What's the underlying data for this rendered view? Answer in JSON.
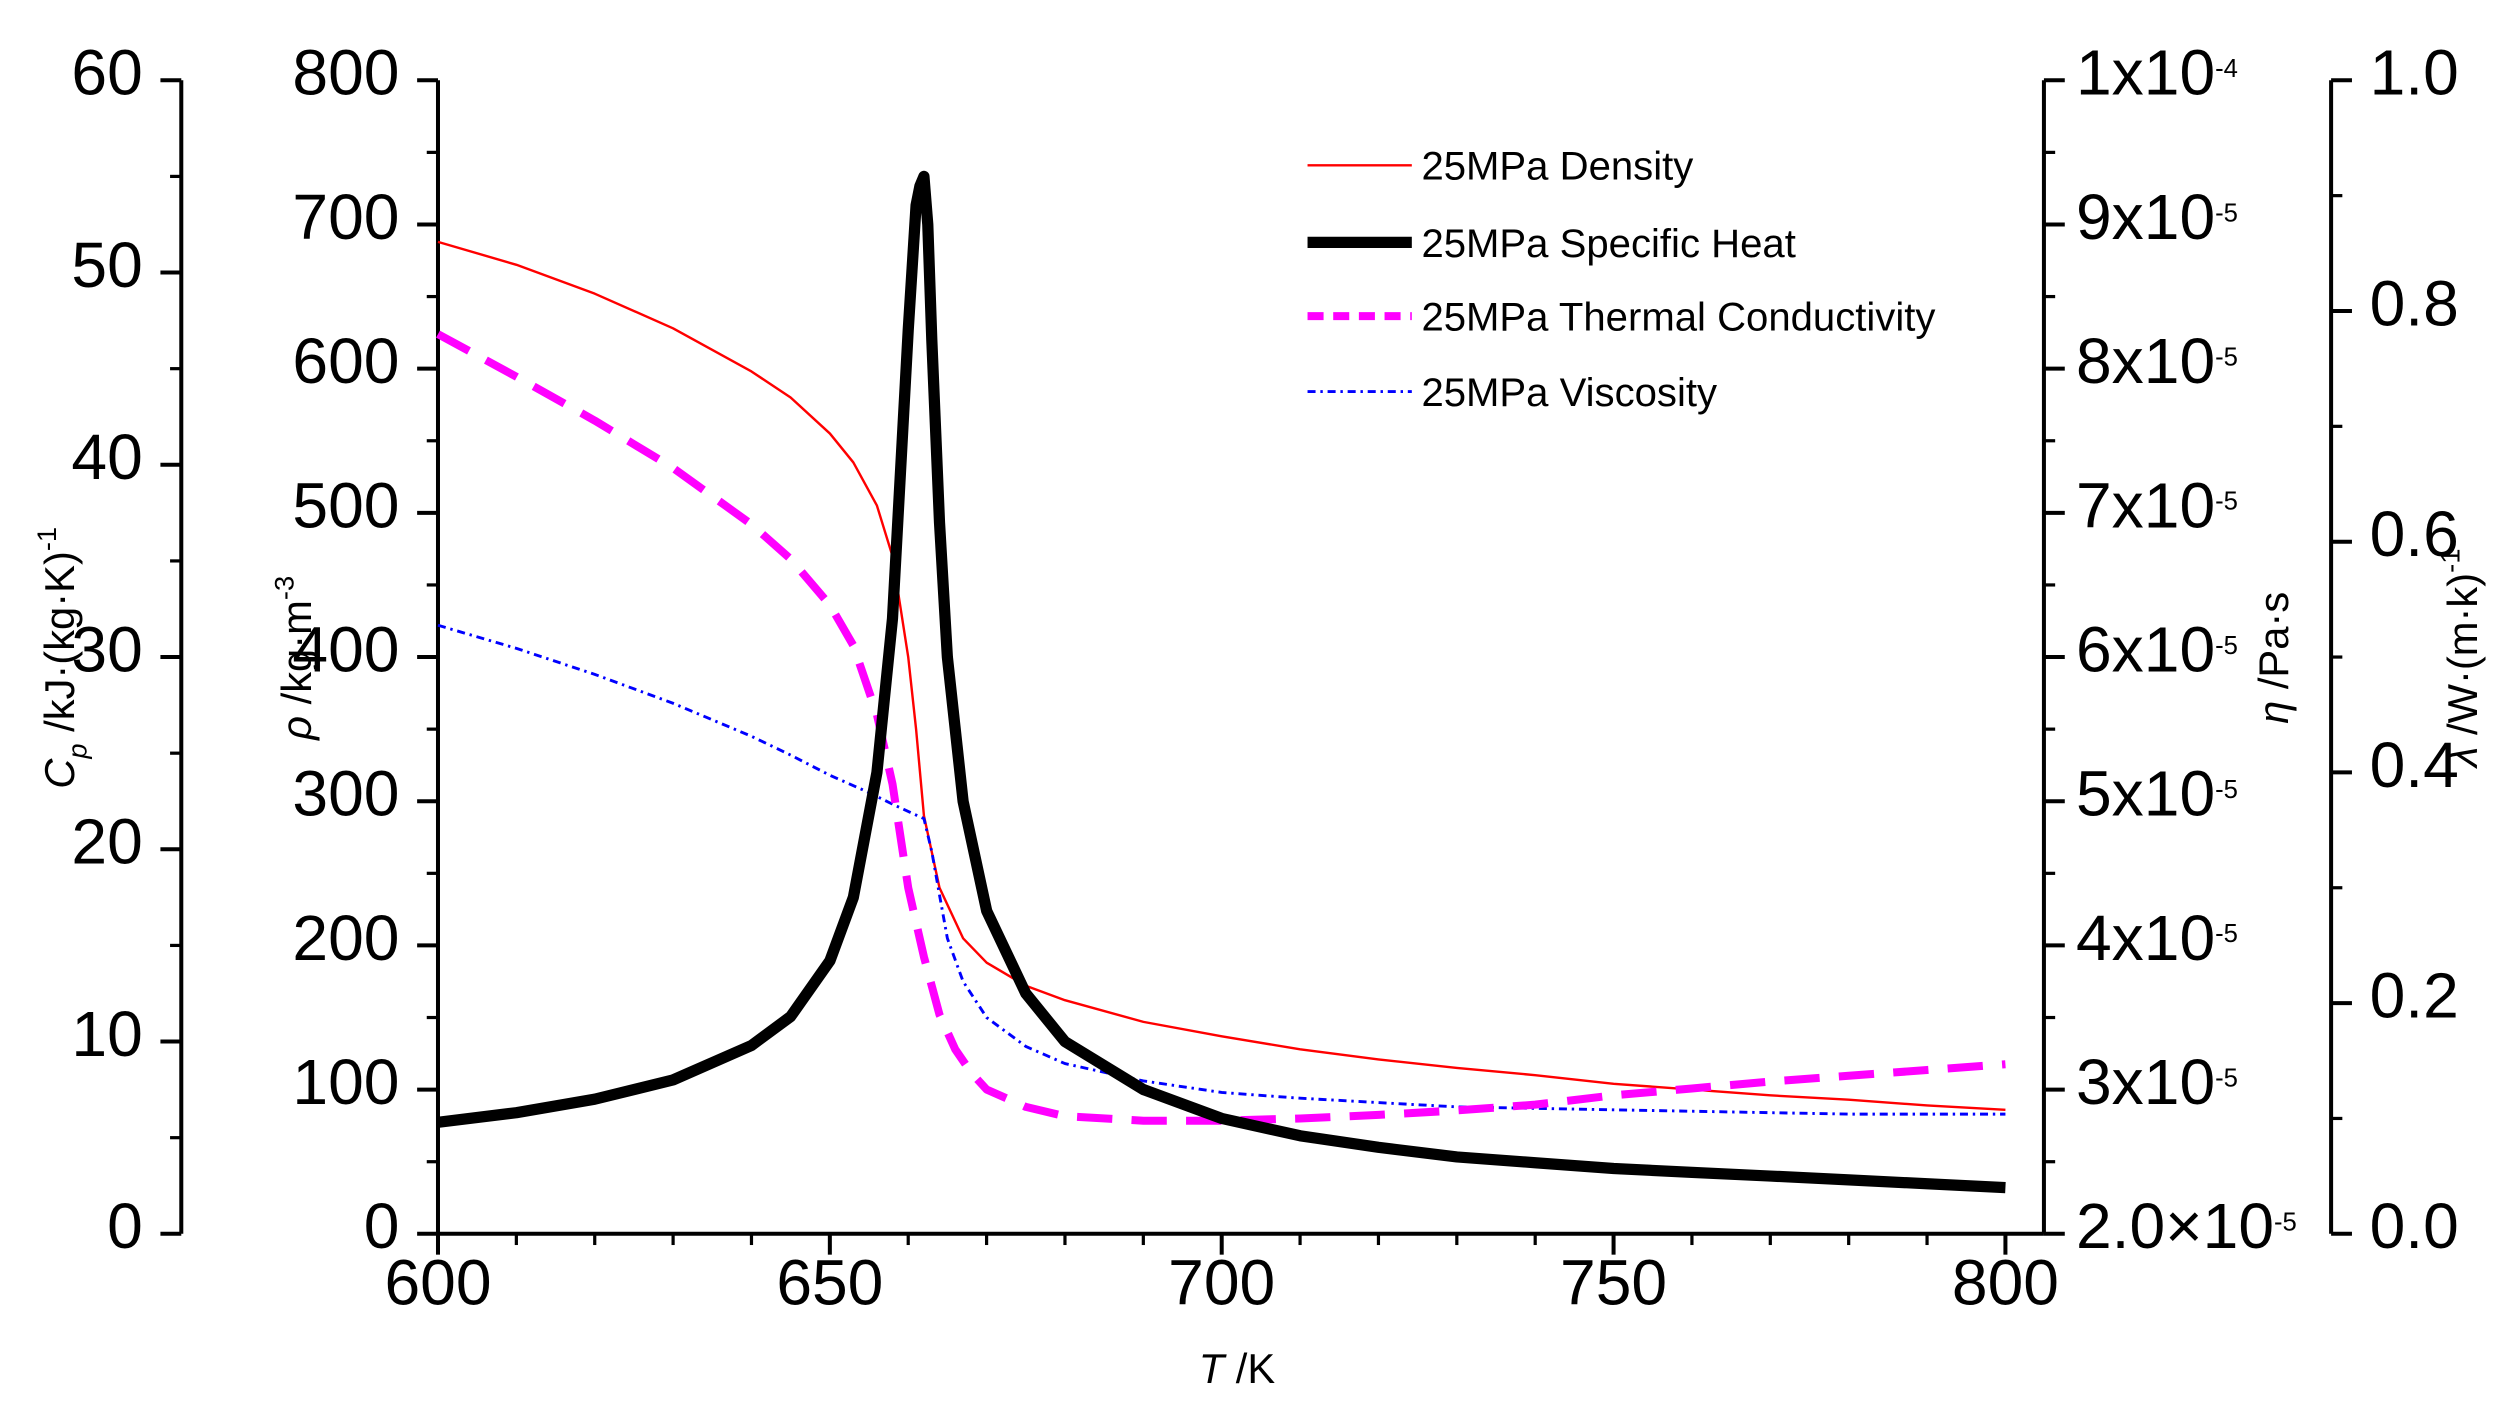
{
  "chart_data": {
    "type": "line",
    "title": "",
    "xlabel_symbol": "T",
    "xlabel_unit": "/K",
    "x_range": [
      600,
      800
    ],
    "x_ticks": [
      "600",
      "650",
      "700",
      "750",
      "800"
    ],
    "axes": {
      "cp": {
        "symbol": "C",
        "subscript": "p",
        "unit": "/kJ·(kg·K)",
        "superscript": "-1",
        "range": [
          0,
          60
        ],
        "ticks": [
          "0",
          "10",
          "20",
          "30",
          "40",
          "50",
          "60"
        ]
      },
      "rho": {
        "symbol": "ρ",
        "unit": "/kg·m",
        "superscript": "-3",
        "range": [
          0,
          800
        ],
        "ticks": [
          "0",
          "100",
          "200",
          "300",
          "400",
          "500",
          "600",
          "700",
          "800"
        ]
      },
      "eta": {
        "symbol": "η",
        "unit": "/Pa·s",
        "range": [
          2e-05,
          0.0001
        ],
        "ticks": [
          {
            "base": "2.0×10",
            "exp": "-5"
          },
          {
            "base": "3x10",
            "exp": "-5"
          },
          {
            "base": "4x10",
            "exp": "-5"
          },
          {
            "base": "5x10",
            "exp": "-5"
          },
          {
            "base": "6x10",
            "exp": "-5"
          },
          {
            "base": "7x10",
            "exp": "-5"
          },
          {
            "base": "8x10",
            "exp": "-5"
          },
          {
            "base": "9x10",
            "exp": "-5"
          },
          {
            "base": "1x10",
            "exp": "-4"
          }
        ]
      },
      "lambda": {
        "symbol": "λ",
        "unit": "/W·(m·k)",
        "superscript": "-1",
        "range": [
          0,
          1.0
        ],
        "ticks": [
          "0.0",
          "0.2",
          "0.4",
          "0.6",
          "0.8",
          "1.0"
        ]
      }
    },
    "legend_position": "top-right",
    "series": [
      {
        "name": "25MPa Density",
        "axis": "rho",
        "color": "#ff0000",
        "style": "solid",
        "x": [
          600,
          610,
          620,
          630,
          640,
          645,
          650,
          653,
          656,
          658,
          660,
          661,
          662,
          664,
          667,
          670,
          675,
          680,
          690,
          700,
          710,
          720,
          730,
          740,
          750,
          760,
          770,
          780,
          790,
          800
        ],
        "values": [
          688,
          672,
          652,
          628,
          598,
          580,
          555,
          535,
          505,
          470,
          400,
          350,
          290,
          240,
          205,
          188,
          172,
          162,
          147,
          137,
          128,
          121,
          115,
          110,
          104,
          100,
          96,
          93,
          89,
          86
        ]
      },
      {
        "name": "25MPa Specific Heat",
        "axis": "cp",
        "color": "#000000",
        "style": "solid",
        "x": [
          600,
          610,
          620,
          630,
          640,
          645,
          650,
          653,
          656,
          658,
          660,
          661,
          661.5,
          662,
          662.5,
          663,
          664,
          665,
          667,
          670,
          675,
          680,
          690,
          700,
          710,
          720,
          730,
          740,
          750,
          760,
          770,
          780,
          790,
          800
        ],
        "values": [
          5.8,
          6.3,
          7.0,
          8.0,
          9.8,
          11.3,
          14.2,
          17.5,
          24.0,
          32.0,
          47.0,
          53.5,
          54.5,
          55.0,
          52.5,
          46.5,
          37.0,
          30.0,
          22.5,
          16.8,
          12.5,
          10.0,
          7.5,
          6.0,
          5.1,
          4.5,
          4.0,
          3.7,
          3.4,
          3.2,
          3.0,
          2.8,
          2.6,
          2.4
        ]
      },
      {
        "name": "25MPa Thermal Conductivity",
        "axis": "lambda",
        "color": "#ff00ff",
        "style": "dashed",
        "x": [
          600,
          610,
          620,
          630,
          640,
          645,
          650,
          653,
          656,
          658,
          660,
          661,
          662,
          664,
          666,
          668,
          670,
          675,
          680,
          690,
          700,
          710,
          720,
          730,
          740,
          750,
          760,
          770,
          780,
          790,
          800
        ],
        "values": [
          0.78,
          0.743,
          0.705,
          0.664,
          0.615,
          0.585,
          0.545,
          0.51,
          0.45,
          0.39,
          0.3,
          0.27,
          0.24,
          0.19,
          0.16,
          0.14,
          0.125,
          0.11,
          0.102,
          0.098,
          0.098,
          0.1,
          0.103,
          0.107,
          0.112,
          0.12,
          0.126,
          0.132,
          0.137,
          0.142,
          0.147
        ]
      },
      {
        "name": "25MPa Viscosity",
        "axis": "eta",
        "color": "#0000ff",
        "style": "dashdot",
        "x": [
          600,
          610,
          620,
          630,
          640,
          645,
          650,
          655,
          658,
          660,
          662,
          663,
          664,
          665,
          667,
          670,
          675,
          680,
          690,
          700,
          710,
          720,
          730,
          740,
          750,
          760,
          770,
          780,
          790,
          800
        ],
        "values": [
          6.22e-05,
          6.06e-05,
          5.88e-05,
          5.68e-05,
          5.45e-05,
          5.32e-05,
          5.18e-05,
          5.06e-05,
          4.98e-05,
          4.93e-05,
          4.88e-05,
          4.65e-05,
          4.35e-05,
          4.05e-05,
          3.75e-05,
          3.5e-05,
          3.3e-05,
          3.18e-05,
          3.06e-05,
          2.98e-05,
          2.94e-05,
          2.91e-05,
          2.88e-05,
          2.87e-05,
          2.86e-05,
          2.85e-05,
          2.84e-05,
          2.83e-05,
          2.83e-05,
          2.83e-05
        ]
      }
    ]
  }
}
